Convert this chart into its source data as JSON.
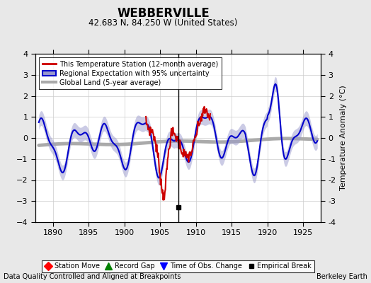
{
  "title": "WEBBERVILLE",
  "subtitle": "42.683 N, 84.250 W (United States)",
  "xlabel_bottom": "Data Quality Controlled and Aligned at Breakpoints",
  "xlabel_right": "Berkeley Earth",
  "ylabel": "Temperature Anomaly (°C)",
  "xlim": [
    1887.5,
    1927.5
  ],
  "ylim": [
    -4,
    4
  ],
  "yticks": [
    -4,
    -3,
    -2,
    -1,
    0,
    1,
    2,
    3,
    4
  ],
  "xticks": [
    1890,
    1895,
    1900,
    1905,
    1910,
    1915,
    1920,
    1925
  ],
  "background_color": "#e8e8e8",
  "plot_background": "#ffffff",
  "grid_color": "#cccccc",
  "station_color": "#cc0000",
  "regional_color": "#0000cc",
  "regional_fill_color": "#9999cc",
  "global_color": "#aaaaaa",
  "empirical_break_year": 1907.5,
  "legend_entries": [
    "This Temperature Station (12-month average)",
    "Regional Expectation with 95% uncertainty",
    "Global Land (5-year average)"
  ]
}
